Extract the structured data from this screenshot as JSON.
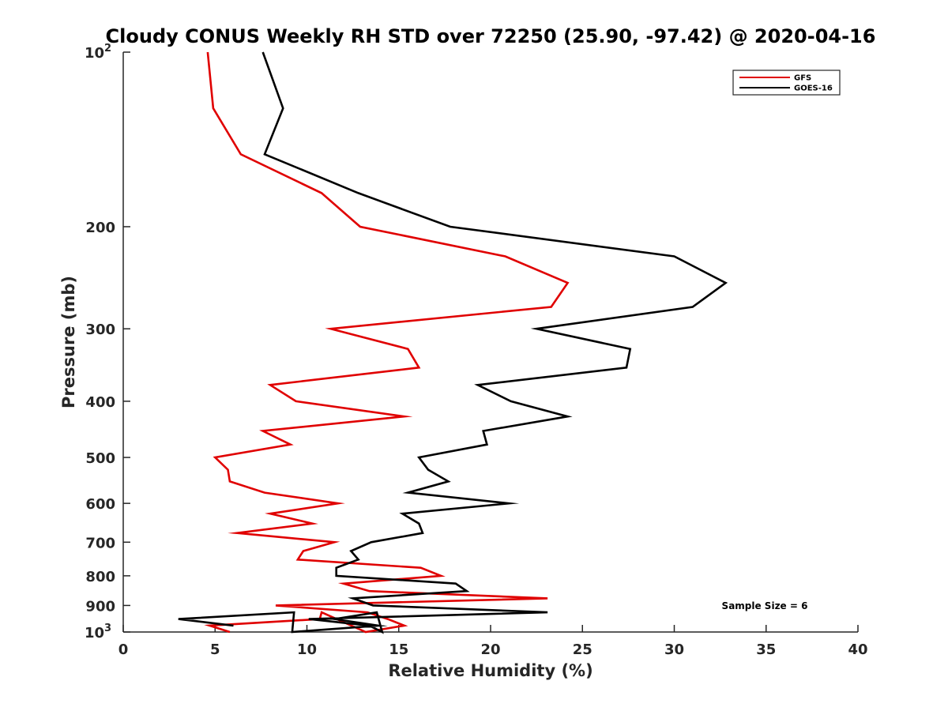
{
  "chart_data": {
    "type": "line",
    "title": "Cloudy CONUS Weekly RH STD over 72250 (25.90, -97.42) @ 2020-04-16",
    "xlabel": "Relative Humidity (%)",
    "ylabel": "Pressure (mb)",
    "xlim": [
      0,
      40
    ],
    "ylim": [
      100,
      1000
    ],
    "y_scale": "log",
    "y_reversed": true,
    "x_ticks": [
      0,
      5,
      10,
      15,
      20,
      25,
      30,
      35,
      40
    ],
    "y_ticks": [
      {
        "value": 100,
        "label": "10",
        "sup": "2"
      },
      {
        "value": 200,
        "label": "200",
        "sup": ""
      },
      {
        "value": 300,
        "label": "300",
        "sup": ""
      },
      {
        "value": 400,
        "label": "400",
        "sup": ""
      },
      {
        "value": 500,
        "label": "500",
        "sup": ""
      },
      {
        "value": 600,
        "label": "600",
        "sup": ""
      },
      {
        "value": 700,
        "label": "700",
        "sup": ""
      },
      {
        "value": 800,
        "label": "800",
        "sup": ""
      },
      {
        "value": 900,
        "label": "900",
        "sup": ""
      },
      {
        "value": 1000,
        "label": "10",
        "sup": "3"
      }
    ],
    "grid": false,
    "legend_position": "top-right",
    "series": [
      {
        "name": "GFS",
        "color": "#e00000",
        "points": [
          [
            4.6,
            100
          ],
          [
            4.9,
            125
          ],
          [
            6.4,
            150
          ],
          [
            10.8,
            175
          ],
          [
            12.9,
            200
          ],
          [
            20.8,
            225
          ],
          [
            24.2,
            250
          ],
          [
            23.3,
            275
          ],
          [
            11.3,
            300
          ],
          [
            15.5,
            325
          ],
          [
            16.1,
            350
          ],
          [
            8.0,
            375
          ],
          [
            9.4,
            400
          ],
          [
            15.3,
            425
          ],
          [
            7.6,
            450
          ],
          [
            9.1,
            475
          ],
          [
            5.0,
            500
          ],
          [
            5.7,
            525
          ],
          [
            5.8,
            550
          ],
          [
            7.7,
            575
          ],
          [
            11.7,
            600
          ],
          [
            8.0,
            625
          ],
          [
            10.3,
            650
          ],
          [
            6.2,
            675
          ],
          [
            11.5,
            700
          ],
          [
            9.8,
            725
          ],
          [
            9.5,
            750
          ],
          [
            16.2,
            775
          ],
          [
            17.3,
            800
          ],
          [
            12.0,
            825
          ],
          [
            13.4,
            850
          ],
          [
            23.1,
            875
          ],
          [
            8.3,
            900
          ],
          [
            13.3,
            925
          ],
          [
            14.4,
            950
          ],
          [
            15.3,
            975
          ],
          [
            13.2,
            1000
          ],
          [
            10.8,
            925
          ],
          [
            10.7,
            950
          ],
          [
            4.7,
            975
          ],
          [
            5.8,
            1000
          ]
        ]
      },
      {
        "name": "GOES-16",
        "color": "#000000",
        "points": [
          [
            7.6,
            100
          ],
          [
            8.7,
            125
          ],
          [
            7.7,
            150
          ],
          [
            12.8,
            175
          ],
          [
            17.8,
            200
          ],
          [
            30.0,
            225
          ],
          [
            32.8,
            250
          ],
          [
            31.0,
            275
          ],
          [
            22.5,
            300
          ],
          [
            27.6,
            325
          ],
          [
            27.4,
            350
          ],
          [
            19.3,
            375
          ],
          [
            21.1,
            400
          ],
          [
            24.2,
            425
          ],
          [
            19.6,
            450
          ],
          [
            19.8,
            475
          ],
          [
            16.1,
            500
          ],
          [
            16.6,
            525
          ],
          [
            17.7,
            550
          ],
          [
            15.5,
            575
          ],
          [
            21.0,
            600
          ],
          [
            15.2,
            625
          ],
          [
            16.1,
            650
          ],
          [
            16.3,
            675
          ],
          [
            13.5,
            700
          ],
          [
            12.4,
            725
          ],
          [
            12.8,
            750
          ],
          [
            11.6,
            775
          ],
          [
            11.6,
            800
          ],
          [
            18.1,
            825
          ],
          [
            18.7,
            850
          ],
          [
            12.5,
            875
          ],
          [
            13.6,
            900
          ],
          [
            23.1,
            925
          ],
          [
            10.1,
            950
          ],
          [
            13.4,
            975
          ],
          [
            14.1,
            1000
          ],
          [
            13.8,
            925
          ],
          [
            11.5,
            950
          ],
          [
            13.9,
            975
          ],
          [
            9.2,
            1000
          ],
          [
            9.3,
            925
          ],
          [
            3.0,
            950
          ],
          [
            6.0,
            975
          ]
        ]
      }
    ],
    "annotation": "Sample Size = 6"
  }
}
